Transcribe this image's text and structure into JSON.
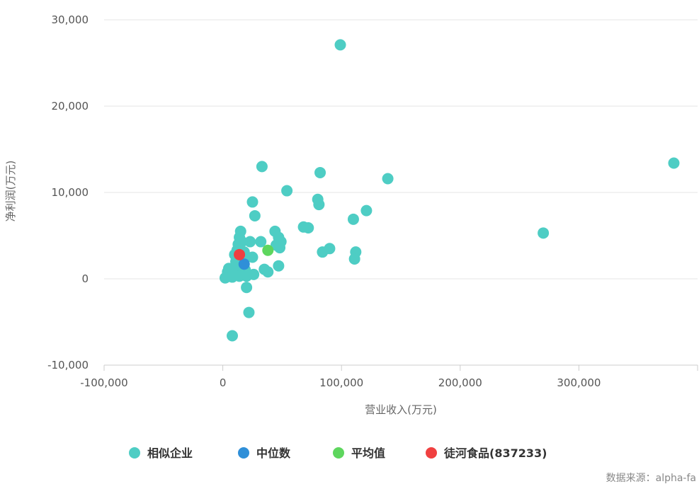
{
  "chart_data": {
    "type": "scatter",
    "xlabel": "营业收入(万元)",
    "ylabel": "净利润(万元)",
    "xlim": [
      -100000,
      400000
    ],
    "ylim": [
      -10000,
      30000
    ],
    "x_ticks": [
      "-100,000",
      "0",
      "100,000",
      "200,000",
      "300,000"
    ],
    "y_ticks": [
      "-10,000",
      "0",
      "10,000",
      "20,000",
      "30,000"
    ],
    "grid": true,
    "legend_position": "bottom",
    "series": [
      {
        "name": "相似企业",
        "color": "#4ecdc4",
        "points": [
          [
            99000,
            27100
          ],
          [
            380000,
            13400
          ],
          [
            270000,
            5300
          ],
          [
            139000,
            11600
          ],
          [
            121000,
            7900
          ],
          [
            110000,
            6900
          ],
          [
            112000,
            3100
          ],
          [
            111000,
            2300
          ],
          [
            90000,
            3500
          ],
          [
            84000,
            3100
          ],
          [
            82000,
            12300
          ],
          [
            81000,
            8600
          ],
          [
            80000,
            9200
          ],
          [
            72000,
            5900
          ],
          [
            68000,
            6000
          ],
          [
            54000,
            10200
          ],
          [
            49000,
            4300
          ],
          [
            48000,
            3600
          ],
          [
            47000,
            4800
          ],
          [
            45000,
            3900
          ],
          [
            47000,
            1500
          ],
          [
            44000,
            5500
          ],
          [
            38000,
            800
          ],
          [
            35000,
            1100
          ],
          [
            33000,
            13000
          ],
          [
            32000,
            4300
          ],
          [
            27000,
            7300
          ],
          [
            25000,
            8900
          ],
          [
            25000,
            2500
          ],
          [
            26000,
            500
          ],
          [
            23000,
            4300
          ],
          [
            22000,
            -3900
          ],
          [
            20000,
            -1000
          ],
          [
            19000,
            1000
          ],
          [
            18000,
            3100
          ],
          [
            16000,
            4300
          ],
          [
            15000,
            5500
          ],
          [
            14000,
            4800
          ],
          [
            13000,
            4000
          ],
          [
            12000,
            3300
          ],
          [
            11000,
            2000
          ],
          [
            10000,
            1000
          ],
          [
            9000,
            500
          ],
          [
            8000,
            200
          ],
          [
            7000,
            1100
          ],
          [
            6000,
            400
          ],
          [
            5000,
            1200
          ],
          [
            4000,
            800
          ],
          [
            3000,
            200
          ],
          [
            2000,
            100
          ],
          [
            8000,
            -6600
          ],
          [
            14000,
            300
          ],
          [
            16000,
            2300
          ],
          [
            20000,
            300
          ],
          [
            12000,
            1600
          ],
          [
            10000,
            2800
          ]
        ]
      },
      {
        "name": "中位数",
        "color": "#2f8fd8",
        "points": [
          [
            18000,
            1700
          ]
        ]
      },
      {
        "name": "平均值",
        "color": "#5ed65e",
        "points": [
          [
            38000,
            3300
          ]
        ]
      },
      {
        "name": "徒河食品(837233)",
        "color": "#f04040",
        "points": [
          [
            14000,
            2800
          ]
        ]
      }
    ],
    "source_note": "数据来源：alpha-fa"
  }
}
